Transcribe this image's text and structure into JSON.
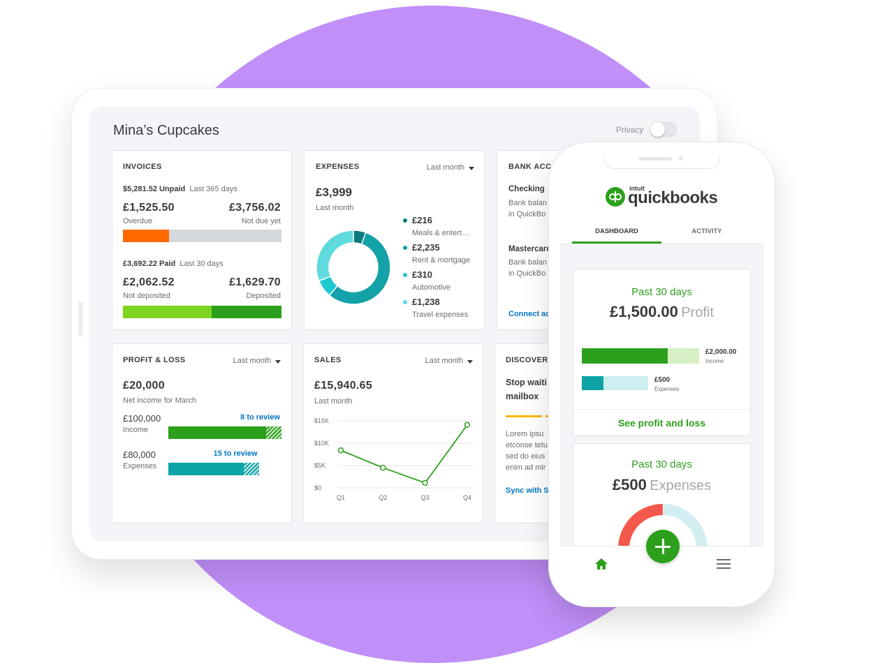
{
  "tablet": {
    "title": "Mina’s Cupcakes",
    "privacy": "Privacy",
    "invoices": {
      "title": "INVOICES",
      "unpaid": {
        "label": "$5,281.52 Unpaid",
        "period": "Last 365 days",
        "values": [
          1525.5,
          3756.02
        ],
        "value_labels": [
          "£1,525.50",
          "£3,756.02"
        ],
        "captions": [
          "Overdue",
          "Not due yet"
        ],
        "colors": [
          "#ff6a00",
          "#d4d7dc"
        ]
      },
      "paid": {
        "label": "£3,692.22 Paid",
        "period": "Last 30 days",
        "values": [
          2062.52,
          1629.7
        ],
        "value_labels": [
          "£2,062.52",
          "£1,629.70"
        ],
        "captions": [
          "Not deposited",
          "Deposited"
        ],
        "colors": [
          "#7fd321",
          "#2ca01c"
        ]
      }
    },
    "expenses": {
      "title": "EXPENSES",
      "period": "Last month",
      "total": "£3,999",
      "total_caption": "Last month",
      "chart": {
        "type": "donut",
        "categories": [
          "Meals & entert…",
          "Rent & mortgage",
          "Automotive",
          "Travel expenses"
        ],
        "values": [
          216,
          2235,
          310,
          1238
        ],
        "value_labels": [
          "£216",
          "£2,235",
          "£310",
          "£1,238"
        ],
        "colors": [
          "#0b7b7f",
          "#12a2a7",
          "#1ec9cf",
          "#5fdadd"
        ]
      }
    },
    "bank": {
      "title": "BANK ACC",
      "accounts": [
        {
          "name": "Checking",
          "lines": [
            "Bank balan",
            "in QuickBo"
          ]
        },
        {
          "name": "Mastercard",
          "lines": [
            "Bank balan",
            "in QuickBo"
          ]
        }
      ],
      "link": "Connect ac"
    },
    "profit_loss": {
      "title": "PROFIT & LOSS",
      "period": "Last month",
      "net": "£20,000",
      "net_caption": "Net income for March",
      "bars": {
        "values": [
          100000,
          80000
        ],
        "value_labels": [
          "£100,000",
          "£80,000"
        ],
        "captions": [
          "Income",
          "Expenses"
        ],
        "review": [
          "8 to review",
          "15 to review"
        ],
        "colors": [
          "#2ca01c",
          "#0ea3a6"
        ]
      }
    },
    "sales": {
      "title": "SALES",
      "period": "Last month",
      "total": "£15,940.65",
      "total_caption": "Last month",
      "chart": {
        "type": "line",
        "categories": [
          "Q1",
          "Q2",
          "Q3",
          "Q4"
        ],
        "values": [
          8400,
          4500,
          1100,
          14100
        ],
        "color": "#2ca01c",
        "ylim": [
          0,
          15000
        ],
        "yticks": [
          {
            "value": 0,
            "label": "$0"
          },
          {
            "value": 5000,
            "label": "$5K"
          },
          {
            "value": 10000,
            "label": "$10K"
          },
          {
            "value": 15000,
            "label": "$15K"
          }
        ],
        "grid": true
      }
    },
    "discover": {
      "title": "DISCOVER",
      "heading": [
        "Stop waiti",
        "mailbox"
      ],
      "body": [
        "Lorem ipsu",
        "etconse tetu",
        "sed do eius",
        "enim ad mir"
      ],
      "link": "Sync with S"
    }
  },
  "phone": {
    "logo_brand": "intuit",
    "logo": "quickbooks",
    "tabs": [
      "DASHBOARD",
      "ACTIVITY"
    ],
    "profit_card": {
      "period": "Past 30 days",
      "amount": "£1,500.00",
      "kind": "Profit",
      "bars": {
        "values": [
          2000,
          500
        ],
        "value_labels": [
          "£2,000.00",
          "£500"
        ],
        "captions": [
          "Income",
          "Expenses"
        ],
        "colors": [
          "#2ca01c",
          "#0ea3a6"
        ]
      },
      "link": "See profit and loss"
    },
    "expense_card": {
      "period": "Past 30 days",
      "amount": "£500",
      "kind": "Expenses"
    }
  }
}
